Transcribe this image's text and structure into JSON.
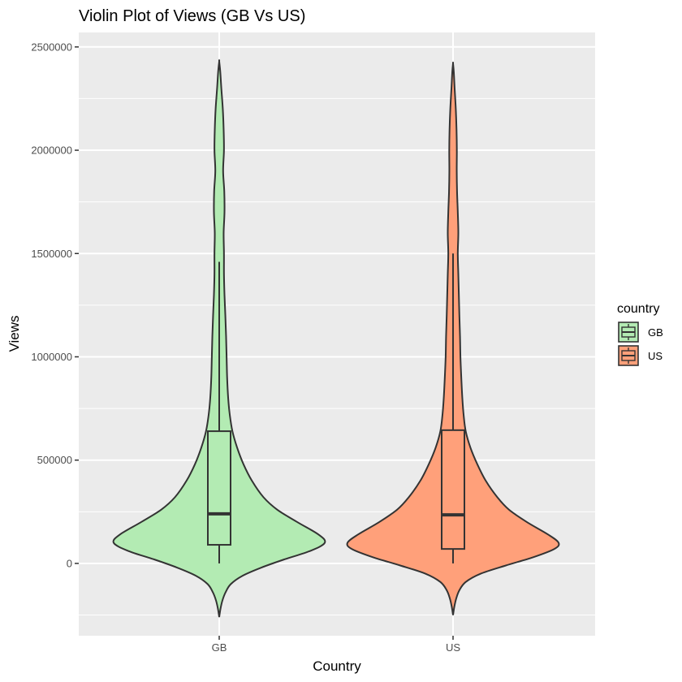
{
  "chart_data": {
    "type": "violin",
    "title": "Violin Plot of Views (GB Vs US)",
    "xlabel": "Country",
    "ylabel": "Views",
    "categories": [
      "GB",
      "US"
    ],
    "y_ticks": [
      0,
      500000,
      1000000,
      1500000,
      2000000,
      2500000
    ],
    "y_tick_labels": [
      "0",
      "500000",
      "1000000",
      "1500000",
      "2000000",
      "2500000"
    ],
    "ylim": [
      -350000,
      2570000
    ],
    "grid": true,
    "legend": {
      "title": "country",
      "placement": "right",
      "entries": [
        {
          "label": "GB",
          "color": "#b3ebb3"
        },
        {
          "label": "US",
          "color": "#ffa07a"
        }
      ]
    },
    "series": [
      {
        "category": "GB",
        "color": "#b3ebb3",
        "box": {
          "min": 0,
          "q1": 90000,
          "median": 240000,
          "q3": 640000,
          "max": 1460000
        },
        "density_profile": [
          {
            "y": -260000,
            "w": 0.0
          },
          {
            "y": -220000,
            "w": 0.012
          },
          {
            "y": -180000,
            "w": 0.03
          },
          {
            "y": -140000,
            "w": 0.06
          },
          {
            "y": -100000,
            "w": 0.11
          },
          {
            "y": -60000,
            "w": 0.22
          },
          {
            "y": -20000,
            "w": 0.4
          },
          {
            "y": 20000,
            "w": 0.62
          },
          {
            "y": 60000,
            "w": 0.86
          },
          {
            "y": 100000,
            "w": 1.0
          },
          {
            "y": 140000,
            "w": 0.94
          },
          {
            "y": 200000,
            "w": 0.74
          },
          {
            "y": 260000,
            "w": 0.55
          },
          {
            "y": 320000,
            "w": 0.42
          },
          {
            "y": 400000,
            "w": 0.31
          },
          {
            "y": 480000,
            "w": 0.23
          },
          {
            "y": 560000,
            "w": 0.17
          },
          {
            "y": 640000,
            "w": 0.125
          },
          {
            "y": 720000,
            "w": 0.1
          },
          {
            "y": 800000,
            "w": 0.085
          },
          {
            "y": 900000,
            "w": 0.075
          },
          {
            "y": 1000000,
            "w": 0.07
          },
          {
            "y": 1100000,
            "w": 0.065
          },
          {
            "y": 1200000,
            "w": 0.058
          },
          {
            "y": 1300000,
            "w": 0.05
          },
          {
            "y": 1400000,
            "w": 0.045
          },
          {
            "y": 1500000,
            "w": 0.045
          },
          {
            "y": 1600000,
            "w": 0.042
          },
          {
            "y": 1700000,
            "w": 0.05
          },
          {
            "y": 1800000,
            "w": 0.048
          },
          {
            "y": 1900000,
            "w": 0.037
          },
          {
            "y": 2000000,
            "w": 0.045
          },
          {
            "y": 2100000,
            "w": 0.042
          },
          {
            "y": 2200000,
            "w": 0.034
          },
          {
            "y": 2300000,
            "w": 0.02
          },
          {
            "y": 2380000,
            "w": 0.01
          },
          {
            "y": 2430000,
            "w": 0.0
          }
        ]
      },
      {
        "category": "US",
        "color": "#ffa07a",
        "box": {
          "min": 0,
          "q1": 70000,
          "median": 235000,
          "q3": 645000,
          "max": 1500000
        },
        "density_profile": [
          {
            "y": -250000,
            "w": 0.0
          },
          {
            "y": -210000,
            "w": 0.012
          },
          {
            "y": -170000,
            "w": 0.03
          },
          {
            "y": -130000,
            "w": 0.06
          },
          {
            "y": -90000,
            "w": 0.12
          },
          {
            "y": -50000,
            "w": 0.26
          },
          {
            "y": -10000,
            "w": 0.5
          },
          {
            "y": 30000,
            "w": 0.76
          },
          {
            "y": 70000,
            "w": 0.96
          },
          {
            "y": 100000,
            "w": 1.0
          },
          {
            "y": 140000,
            "w": 0.9
          },
          {
            "y": 200000,
            "w": 0.7
          },
          {
            "y": 260000,
            "w": 0.53
          },
          {
            "y": 320000,
            "w": 0.42
          },
          {
            "y": 400000,
            "w": 0.31
          },
          {
            "y": 480000,
            "w": 0.23
          },
          {
            "y": 560000,
            "w": 0.165
          },
          {
            "y": 640000,
            "w": 0.12
          },
          {
            "y": 720000,
            "w": 0.1
          },
          {
            "y": 800000,
            "w": 0.088
          },
          {
            "y": 900000,
            "w": 0.078
          },
          {
            "y": 1000000,
            "w": 0.07
          },
          {
            "y": 1100000,
            "w": 0.066
          },
          {
            "y": 1200000,
            "w": 0.06
          },
          {
            "y": 1300000,
            "w": 0.055
          },
          {
            "y": 1400000,
            "w": 0.05
          },
          {
            "y": 1500000,
            "w": 0.045
          },
          {
            "y": 1600000,
            "w": 0.05
          },
          {
            "y": 1700000,
            "w": 0.045
          },
          {
            "y": 1800000,
            "w": 0.038
          },
          {
            "y": 1900000,
            "w": 0.035
          },
          {
            "y": 2000000,
            "w": 0.036
          },
          {
            "y": 2100000,
            "w": 0.033
          },
          {
            "y": 2200000,
            "w": 0.026
          },
          {
            "y": 2300000,
            "w": 0.015
          },
          {
            "y": 2380000,
            "w": 0.007
          },
          {
            "y": 2420000,
            "w": 0.0
          }
        ]
      }
    ]
  }
}
